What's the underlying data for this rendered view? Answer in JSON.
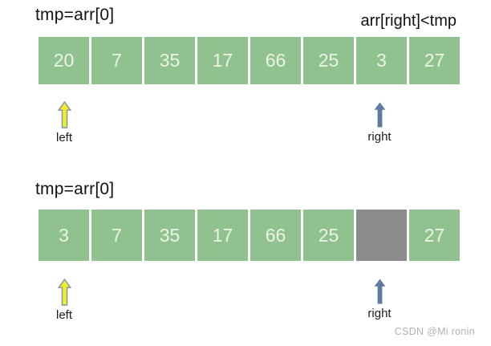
{
  "colors": {
    "cell_green": "#90c28f",
    "cell_gray": "#8b8b8b",
    "cell_text": "#edf3ea",
    "arrow_left_fill": "#eded2e",
    "arrow_left_stroke": "#8392ab",
    "arrow_right_fill": "#5e7ba1",
    "watermark_color": "#b2b2b2"
  },
  "diagram1": {
    "title": "tmp=arr[0]",
    "annotation": "arr[right]<tmp",
    "cells": [
      {
        "value": "20",
        "state": "green"
      },
      {
        "value": "7",
        "state": "green"
      },
      {
        "value": "35",
        "state": "green"
      },
      {
        "value": "17",
        "state": "green"
      },
      {
        "value": "66",
        "state": "green"
      },
      {
        "value": "25",
        "state": "green"
      },
      {
        "value": "3",
        "state": "green"
      },
      {
        "value": "27",
        "state": "green"
      }
    ],
    "left_pointer": {
      "label": "left",
      "cell_index": 0
    },
    "right_pointer": {
      "label": "right",
      "cell_index": 6
    }
  },
  "diagram2": {
    "title": "tmp=arr[0]",
    "cells": [
      {
        "value": "3",
        "state": "green"
      },
      {
        "value": "7",
        "state": "green"
      },
      {
        "value": "35",
        "state": "green"
      },
      {
        "value": "17",
        "state": "green"
      },
      {
        "value": "66",
        "state": "green"
      },
      {
        "value": "25",
        "state": "green"
      },
      {
        "value": "",
        "state": "gray"
      },
      {
        "value": "27",
        "state": "green"
      }
    ],
    "left_pointer": {
      "label": "left",
      "cell_index": 0
    },
    "right_pointer": {
      "label": "right",
      "cell_index": 6
    }
  },
  "watermark": "CSDN @Mi ronin"
}
